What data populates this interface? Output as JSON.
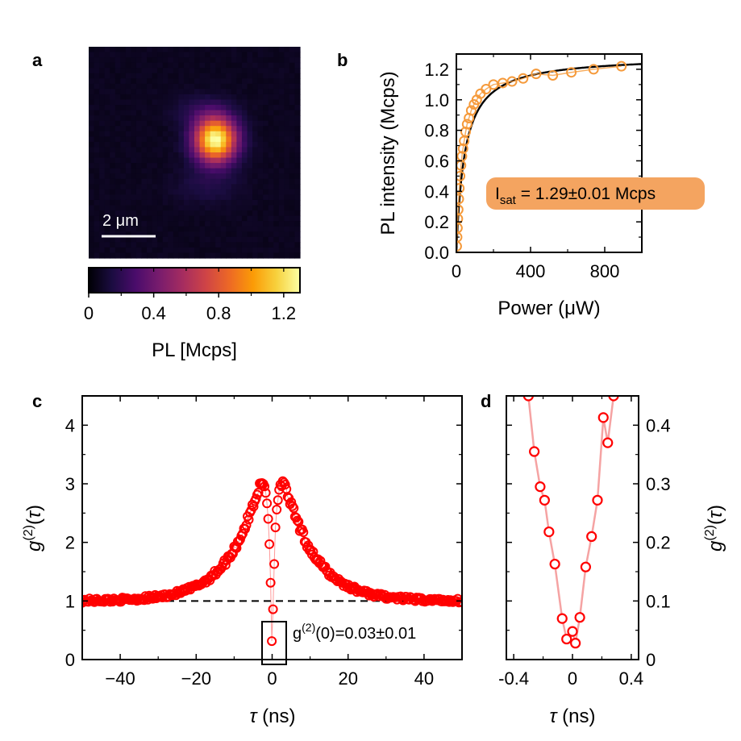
{
  "panel_letters": {
    "a": "a",
    "b": "b",
    "c": "c",
    "d": "d"
  },
  "chart_data": [
    {
      "panel": "a",
      "type": "heatmap",
      "scale_bar_label": "2 μm",
      "colorbar": {
        "label": "PL [Mcps]",
        "range": [
          0,
          1.3
        ],
        "ticks": [
          0,
          0.4,
          0.8,
          1.2
        ],
        "tick_labels": [
          "0",
          "0.4",
          "0.8",
          "1.2"
        ],
        "colormap": [
          "#000004",
          "#1b0c41",
          "#4a0c6b",
          "#781c6d",
          "#a52c60",
          "#cf4446",
          "#ed6925",
          "#fb9b06",
          "#f7d13d",
          "#fcffa4"
        ]
      },
      "spot": {
        "peak_mcps": 1.25,
        "center": [
          0.6,
          0.44
        ],
        "width_um": 1.0
      }
    },
    {
      "panel": "b",
      "type": "scatter",
      "xlabel": "Power (μW)",
      "ylabel": "PL intensity (Mcps)",
      "xlim": [
        0,
        1000
      ],
      "ylim": [
        0,
        1.3
      ],
      "xticks": [
        0,
        400,
        800
      ],
      "xtick_labels": [
        "0",
        "400",
        "800"
      ],
      "yticks": [
        0,
        0.2,
        0.4,
        0.6,
        0.8,
        1.0,
        1.2
      ],
      "ytick_labels": [
        "0.0",
        "0.2",
        "0.4",
        "0.6",
        "0.8",
        "1.0",
        "1.2"
      ],
      "annotation": {
        "prefix": "I",
        "subscript": "sat",
        "text": " = 1.29±0.01 Mcps"
      },
      "annotation_color": "#f4a460",
      "series": [
        {
          "name": "data",
          "color": "#f59a3b",
          "marker": "circle-open",
          "x": [
            2,
            4,
            6,
            8,
            10,
            13,
            16,
            20,
            25,
            30,
            36,
            42,
            50,
            58,
            68,
            80,
            95,
            110,
            130,
            160,
            200,
            250,
            300,
            360,
            430,
            520,
            620,
            740,
            890
          ],
          "y": [
            0.04,
            0.1,
            0.16,
            0.22,
            0.28,
            0.35,
            0.42,
            0.5,
            0.57,
            0.63,
            0.68,
            0.73,
            0.79,
            0.84,
            0.88,
            0.93,
            0.97,
            1.0,
            1.04,
            1.07,
            1.1,
            1.11,
            1.12,
            1.14,
            1.17,
            1.16,
            1.18,
            1.2,
            1.22
          ]
        },
        {
          "name": "fit",
          "color": "#000000",
          "type": "line",
          "model": "Isat*P/(P+Psat)",
          "Isat": 1.29,
          "Psat": 45
        }
      ]
    },
    {
      "panel": "c",
      "type": "scatter",
      "xlabel": "τ (ns)",
      "ylabel": "g(2)(τ)",
      "xlim": [
        -50,
        50
      ],
      "ylim": [
        0,
        4.5
      ],
      "xticks": [
        -40,
        -20,
        0,
        20,
        40
      ],
      "xtick_labels": [
        "−40",
        "−20",
        "0",
        "20",
        "40"
      ],
      "yticks": [
        0,
        1,
        2,
        3,
        4
      ],
      "ytick_labels": [
        "0",
        "1",
        "2",
        "3",
        "4"
      ],
      "reference_line_y": 1,
      "annotation": {
        "pre": "g",
        "sup": "(2)",
        "post": "(0)=0.03±0.01"
      },
      "color": "#ff0000",
      "model": {
        "baseline": 1,
        "bunching_amp": 3.1,
        "bunching_tau_ns": 8,
        "antibunching_tau_ns": 1.0,
        "g2_0": 0.03,
        "noise": 0.07,
        "x_step_ns": 0.32
      }
    },
    {
      "panel": "d",
      "type": "line",
      "xlabel": "τ (ns)",
      "ylabel": "g(2)(τ)",
      "xlim": [
        -0.45,
        0.45
      ],
      "ylim": [
        0,
        0.45
      ],
      "xticks": [
        -0.4,
        0,
        0.4
      ],
      "xtick_labels": [
        "-0.4",
        "0",
        "0.4"
      ],
      "yticks": [
        0,
        0.1,
        0.2,
        0.3,
        0.4
      ],
      "ytick_labels": [
        "0",
        "0.1",
        "0.2",
        "0.3",
        "0.4"
      ],
      "point_color": "#ff0000",
      "line_color": "#f5a3a3",
      "x": [
        -0.3,
        -0.26,
        -0.22,
        -0.19,
        -0.16,
        -0.12,
        -0.07,
        -0.04,
        0.0,
        0.02,
        0.05,
        0.09,
        0.13,
        0.17,
        0.21,
        0.24,
        0.28
      ],
      "y": [
        0.45,
        0.355,
        0.295,
        0.272,
        0.218,
        0.163,
        0.07,
        0.035,
        0.048,
        0.028,
        0.072,
        0.158,
        0.21,
        0.272,
        0.413,
        0.37,
        0.45
      ]
    }
  ]
}
